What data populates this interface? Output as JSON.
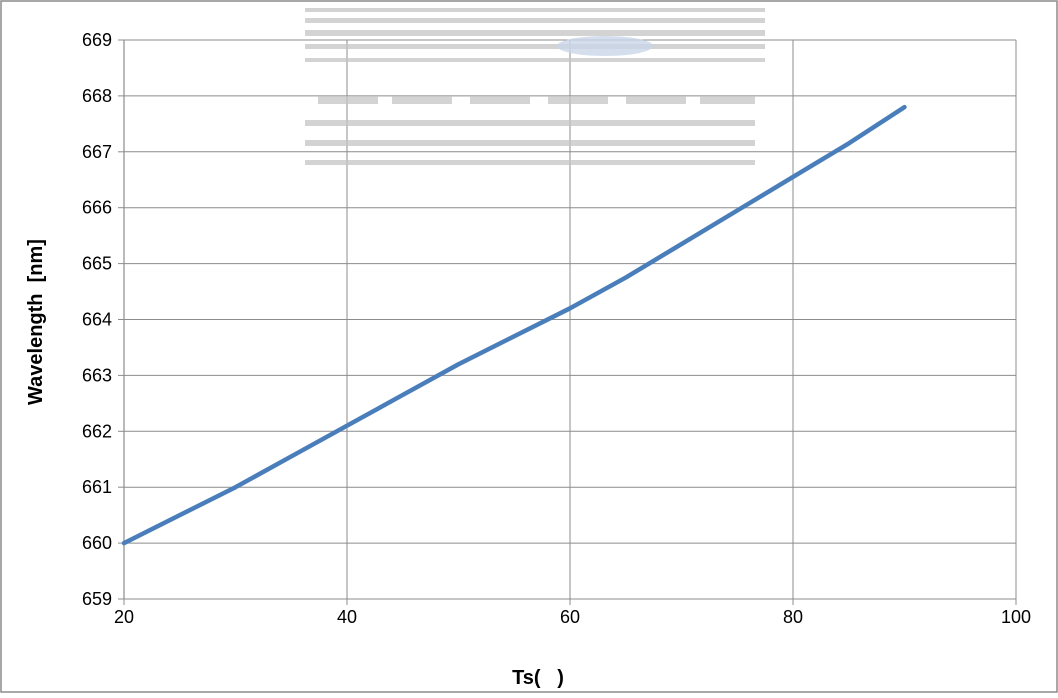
{
  "chart_data": {
    "type": "line",
    "title": "",
    "xlabel": "Ts(   )",
    "ylabel": "Wavelength  [nm]",
    "xlim": [
      20,
      100
    ],
    "ylim": [
      659,
      669
    ],
    "xticks": [
      20,
      40,
      60,
      80,
      100
    ],
    "yticks": [
      659,
      660,
      661,
      662,
      663,
      664,
      665,
      666,
      667,
      668,
      669
    ],
    "grid": true,
    "legend": "none",
    "series": [
      {
        "color": "#4a7ebb",
        "x": [
          20,
          25,
          30,
          35,
          40,
          45,
          50,
          55,
          60,
          65,
          70,
          75,
          80,
          85,
          90
        ],
        "y": [
          660.0,
          660.5,
          661.0,
          661.55,
          662.1,
          662.65,
          663.2,
          663.7,
          664.2,
          664.75,
          665.35,
          665.95,
          666.55,
          667.15,
          667.8
        ]
      }
    ]
  }
}
